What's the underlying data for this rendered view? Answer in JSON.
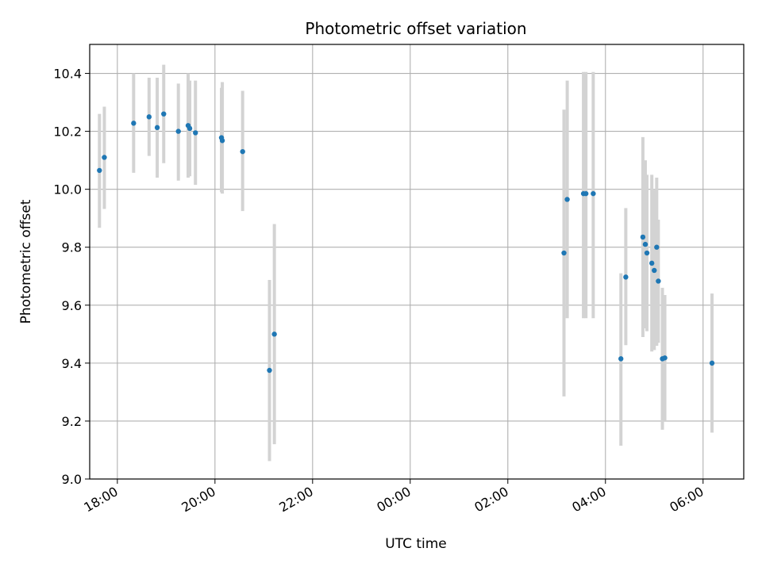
{
  "chart_data": {
    "type": "scatter",
    "title": "Photometric offset variation",
    "xlabel": "UTC time",
    "ylabel": "Photometric offset",
    "xlim": [
      "17:26",
      "06:50"
    ],
    "ylim": [
      9.0,
      10.5
    ],
    "x_ticks": [
      "18:00",
      "20:00",
      "22:00",
      "00:00",
      "02:00",
      "04:00",
      "06:00"
    ],
    "y_ticks": [
      "9.0",
      "9.2",
      "9.4",
      "9.6",
      "9.8",
      "10.0",
      "10.2",
      "10.4"
    ],
    "grid": true,
    "colors": {
      "point": "#1f77b4",
      "errorbar": "#d3d3d3",
      "grid": "#b0b0b0"
    },
    "series": [
      {
        "points": [
          {
            "x": "17:38",
            "y": 10.065,
            "ylow": 9.867,
            "yhigh": 10.26
          },
          {
            "x": "17:44",
            "y": 10.11,
            "ylow": 9.932,
            "yhigh": 10.285
          },
          {
            "x": "18:20",
            "y": 10.228,
            "ylow": 10.057,
            "yhigh": 10.4
          },
          {
            "x": "18:39",
            "y": 10.25,
            "ylow": 10.115,
            "yhigh": 10.385
          },
          {
            "x": "18:49",
            "y": 10.213,
            "ylow": 10.04,
            "yhigh": 10.385
          },
          {
            "x": "18:57",
            "y": 10.26,
            "ylow": 10.09,
            "yhigh": 10.43
          },
          {
            "x": "19:15",
            "y": 10.2,
            "ylow": 10.03,
            "yhigh": 10.365
          },
          {
            "x": "19:27",
            "y": 10.22,
            "ylow": 10.04,
            "yhigh": 10.4
          },
          {
            "x": "19:29",
            "y": 10.21,
            "ylow": 10.045,
            "yhigh": 10.375
          },
          {
            "x": "19:36",
            "y": 10.195,
            "ylow": 10.015,
            "yhigh": 10.375
          },
          {
            "x": "20:08",
            "y": 10.178,
            "ylow": 9.99,
            "yhigh": 10.35
          },
          {
            "x": "20:09",
            "y": 10.168,
            "ylow": 9.985,
            "yhigh": 10.37
          },
          {
            "x": "20:34",
            "y": 10.13,
            "ylow": 9.925,
            "yhigh": 10.34
          },
          {
            "x": "21:07",
            "y": 9.375,
            "ylow": 9.062,
            "yhigh": 9.687
          },
          {
            "x": "21:13",
            "y": 9.5,
            "ylow": 9.12,
            "yhigh": 9.88
          },
          {
            "x": "03:09",
            "y": 9.78,
            "ylow": 9.285,
            "yhigh": 10.275
          },
          {
            "x": "03:13",
            "y": 9.965,
            "ylow": 9.555,
            "yhigh": 10.375
          },
          {
            "x": "03:33",
            "y": 9.985,
            "ylow": 9.555,
            "yhigh": 10.405
          },
          {
            "x": "03:36",
            "y": 9.985,
            "ylow": 9.555,
            "yhigh": 10.405
          },
          {
            "x": "03:45",
            "y": 9.985,
            "ylow": 9.555,
            "yhigh": 10.405
          },
          {
            "x": "04:19",
            "y": 9.415,
            "ylow": 9.115,
            "yhigh": 9.71
          },
          {
            "x": "04:25",
            "y": 9.697,
            "ylow": 9.462,
            "yhigh": 9.935
          },
          {
            "x": "04:46",
            "y": 9.835,
            "ylow": 9.49,
            "yhigh": 10.18
          },
          {
            "x": "04:49",
            "y": 9.81,
            "ylow": 9.52,
            "yhigh": 10.1
          },
          {
            "x": "04:51",
            "y": 9.78,
            "ylow": 9.51,
            "yhigh": 10.05
          },
          {
            "x": "04:57",
            "y": 9.745,
            "ylow": 9.44,
            "yhigh": 10.05
          },
          {
            "x": "05:00",
            "y": 9.72,
            "ylow": 9.445,
            "yhigh": 10.0
          },
          {
            "x": "05:03",
            "y": 9.8,
            "ylow": 9.46,
            "yhigh": 10.04
          },
          {
            "x": "05:05",
            "y": 9.683,
            "ylow": 9.47,
            "yhigh": 9.895
          },
          {
            "x": "05:10",
            "y": 9.415,
            "ylow": 9.17,
            "yhigh": 9.66
          },
          {
            "x": "05:13",
            "y": 9.418,
            "ylow": 9.2,
            "yhigh": 9.635
          },
          {
            "x": "06:11",
            "y": 9.4,
            "ylow": 9.16,
            "yhigh": 9.64
          }
        ]
      }
    ]
  }
}
